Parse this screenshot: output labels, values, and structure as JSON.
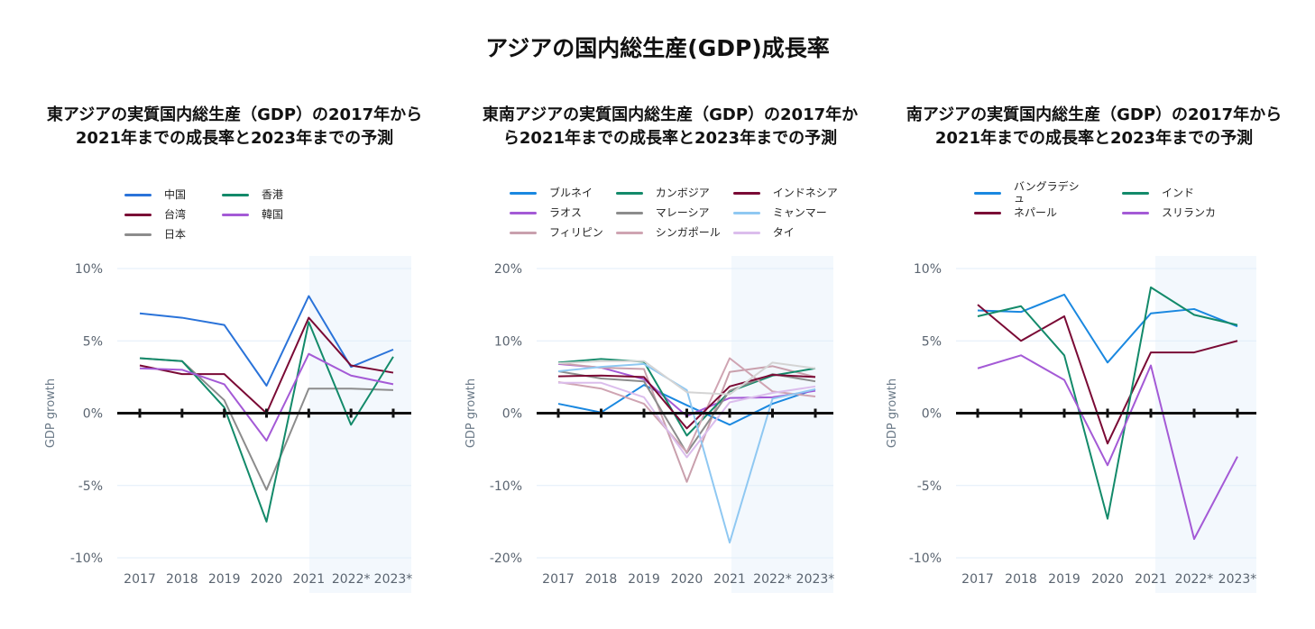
{
  "title": "アジアの国内総生産(GDP)成長率",
  "chart_data": [
    {
      "type": "line",
      "title": "東アジアの実質国内総生産（GDP）の2017年から2021年までの成長率と2023年までの予測",
      "ylabel": "GDP growth",
      "categories": [
        "2017",
        "2018",
        "2019",
        "2020",
        "2021",
        "2022*",
        "2023*"
      ],
      "yticks": [
        "10%",
        "5%",
        "0%",
        "-5%",
        "-10%"
      ],
      "ylim": [
        -10,
        10
      ],
      "yticks_values": [
        10,
        5,
        0,
        -5,
        -10
      ],
      "forecast_shading": [
        "2021",
        "2023*"
      ],
      "legend_rows": 3,
      "series": [
        {
          "name": "中国",
          "color": "#2a73d9",
          "values": [
            6.9,
            6.6,
            6.1,
            1.9,
            8.1,
            3.2,
            4.4
          ]
        },
        {
          "name": "台湾",
          "color": "#7a0a35",
          "values": [
            3.3,
            2.7,
            2.7,
            0.0,
            6.6,
            3.3,
            2.8
          ]
        },
        {
          "name": "日本",
          "color": "#8c8c8c",
          "values": [
            3.8,
            3.6,
            0.9,
            -5.3,
            1.7,
            1.7,
            1.6
          ]
        },
        {
          "name": "香港",
          "color": "#138a6a",
          "values": [
            3.8,
            3.6,
            0.4,
            -7.5,
            6.3,
            -0.8,
            3.9
          ]
        },
        {
          "name": "韓国",
          "color": "#a45ad6",
          "values": [
            3.1,
            3.0,
            2.0,
            -1.9,
            4.1,
            2.6,
            2.0
          ]
        }
      ]
    },
    {
      "type": "line",
      "title": "東南アジアの実質国内総生産（GDP）の2017年から2021年までの成長率と2023年までの予測",
      "ylabel": "GDP growth",
      "categories": [
        "2017",
        "2018",
        "2019",
        "2020",
        "2021",
        "2022*",
        "2023*"
      ],
      "yticks": [
        "20%",
        "10%",
        "0%",
        "-10%",
        "-20%"
      ],
      "ylim": [
        -20,
        20
      ],
      "yticks_values": [
        20,
        10,
        0,
        -10,
        -20
      ],
      "forecast_shading": [
        "2021",
        "2023*"
      ],
      "legend_rows": 3,
      "series": [
        {
          "name": "ブルネイ",
          "color": "#1a88e0",
          "values": [
            1.3,
            0.1,
            3.9,
            1.1,
            -1.6,
            1.3,
            3.3
          ]
        },
        {
          "name": "ラオス",
          "color": "#a45ad6",
          "values": [
            6.8,
            6.3,
            4.7,
            -0.4,
            2.1,
            2.2,
            3.1
          ]
        },
        {
          "name": "フィリピン",
          "color": "#c9a0ad",
          "values": [
            6.9,
            6.3,
            6.1,
            -9.5,
            5.7,
            6.5,
            5.0
          ]
        },
        {
          "name": "カンボジア",
          "color": "#138a6a",
          "values": [
            7.0,
            7.5,
            7.1,
            -3.1,
            3.0,
            5.2,
            6.2
          ]
        },
        {
          "name": "マレーシア",
          "color": "#8c8c8c",
          "values": [
            5.8,
            4.8,
            4.4,
            -5.5,
            3.1,
            5.4,
            4.4
          ]
        },
        {
          "name": "シンガポール",
          "color": "#cfa4b2",
          "values": [
            4.3,
            3.4,
            1.3,
            -5.4,
            7.6,
            3.0,
            2.3
          ]
        },
        {
          "name": "インドネシア",
          "color": "#7a0a35",
          "values": [
            5.1,
            5.2,
            5.0,
            -2.1,
            3.7,
            5.3,
            5.0
          ]
        },
        {
          "name": "ミャンマー",
          "color": "#8fc8f2",
          "values": [
            5.8,
            6.4,
            6.8,
            3.2,
            -17.9,
            2.0,
            3.3
          ]
        },
        {
          "name": "タイ",
          "color": "#dbbdec",
          "values": [
            4.2,
            4.2,
            2.2,
            -6.1,
            1.5,
            2.8,
            3.7
          ]
        },
        {
          "color": "#d4d4d4",
          "values": [
            6.9,
            7.2,
            7.2,
            2.9,
            2.6,
            7.0,
            6.2
          ]
        }
      ]
    },
    {
      "type": "line",
      "title": "南アジアの実質国内総生産（GDP）の2017年から2021年までの成長率と2023年までの予測",
      "ylabel": "GDP growth",
      "categories": [
        "2017",
        "2018",
        "2019",
        "2020",
        "2021",
        "2022*",
        "2023*"
      ],
      "yticks": [
        "10%",
        "5%",
        "0%",
        "-5%",
        "-10%"
      ],
      "ylim": [
        -10,
        10
      ],
      "yticks_values": [
        10,
        5,
        0,
        -5,
        -10
      ],
      "forecast_shading": [
        "2021",
        "2023*"
      ],
      "legend_rows": 2,
      "series": [
        {
          "name": "バングラデシュ",
          "color": "#1a88e0",
          "values": [
            7.1,
            7.0,
            8.2,
            3.5,
            6.9,
            7.2,
            6.0
          ]
        },
        {
          "name": "ネパール",
          "color": "#7a0a35",
          "values": [
            7.5,
            5.0,
            6.7,
            -2.1,
            4.2,
            4.2,
            5.0
          ]
        },
        {
          "name": "インド",
          "color": "#138a6a",
          "values": [
            6.7,
            7.4,
            4.0,
            -7.3,
            8.7,
            6.8,
            6.1
          ]
        },
        {
          "name": "スリランカ",
          "color": "#a45ad6",
          "values": [
            3.1,
            4.0,
            2.3,
            -3.6,
            3.3,
            -8.7,
            -3.0
          ]
        }
      ]
    }
  ]
}
